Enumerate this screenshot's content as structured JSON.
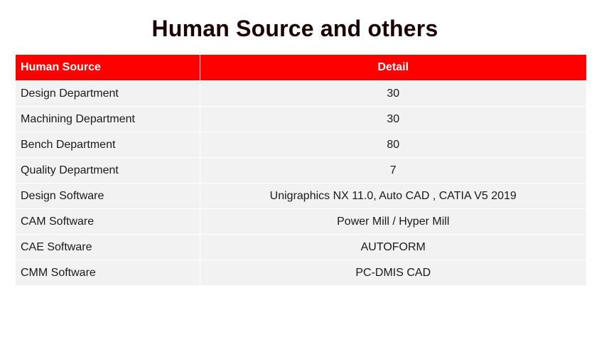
{
  "title": "Human Source and others",
  "table": {
    "headers": [
      "Human Source",
      "Detail"
    ],
    "rows": [
      [
        "Design Department",
        "30"
      ],
      [
        "Machining Department",
        "30"
      ],
      [
        "Bench Department",
        "80"
      ],
      [
        "Quality Department",
        "7"
      ],
      [
        "Design Software",
        "Unigraphics NX 11.0, Auto CAD , CATIA V5 2019"
      ],
      [
        "CAM Software",
        "Power Mill / Hyper Mill"
      ],
      [
        "CAE Software",
        "AUTOFORM"
      ],
      [
        "CMM Software",
        "PC-DMIS CAD"
      ]
    ]
  }
}
